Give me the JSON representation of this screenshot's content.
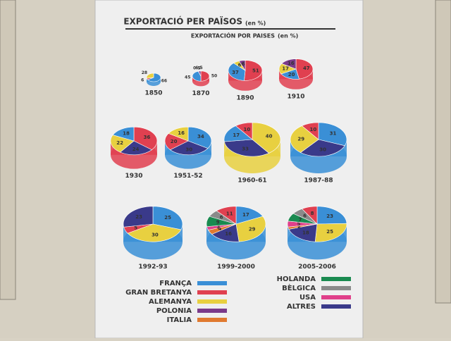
{
  "header": {
    "title": "EXPORTACIÓ PER PAÏSOS",
    "title_unit": "(en %)",
    "subtitle": "EXPORTACIÓN POR PAISES",
    "subtitle_unit": "(en %)"
  },
  "chart_data": [
    {
      "type": "pie",
      "title": "1850",
      "values": [
        66,
        6,
        28
      ],
      "colors": [
        "#3a8fd6",
        "#e04050",
        "#e8d040"
      ]
    },
    {
      "type": "pie",
      "title": "1870",
      "values": [
        50,
        45,
        0.5,
        4.5
      ],
      "colors": [
        "#e04050",
        "#3a8fd6",
        "#e8d040",
        "#7a3a8a"
      ]
    },
    {
      "type": "pie",
      "title": "1890",
      "values": [
        51,
        37,
        6,
        6
      ],
      "colors": [
        "#e04050",
        "#3a8fd6",
        "#e8d040",
        "#7a3a8a"
      ]
    },
    {
      "type": "pie",
      "title": "1910",
      "values": [
        47,
        20,
        17,
        16
      ],
      "colors": [
        "#e04050",
        "#3a8fd6",
        "#e8d040",
        "#7a3a8a"
      ]
    },
    {
      "type": "pie",
      "title": "1930",
      "values": [
        36,
        24,
        22,
        18
      ],
      "colors": [
        "#e04050",
        "#3a3a8a",
        "#e8d040",
        "#3a8fd6"
      ]
    },
    {
      "type": "pie",
      "title": "1951-52",
      "values": [
        34,
        30,
        20,
        16
      ],
      "colors": [
        "#3a8fd6",
        "#3a3a8a",
        "#e04050",
        "#e8d040"
      ]
    },
    {
      "type": "pie",
      "title": "1960-61",
      "values": [
        40,
        33,
        17,
        10
      ],
      "colors": [
        "#e8d040",
        "#3a3a8a",
        "#3a8fd6",
        "#e04050"
      ]
    },
    {
      "type": "pie",
      "title": "1987-88",
      "values": [
        31,
        30,
        29,
        10
      ],
      "colors": [
        "#3a8fd6",
        "#3a3a8a",
        "#e8d040",
        "#e04050"
      ]
    },
    {
      "type": "pie",
      "title": "1992-93",
      "values": [
        25,
        30,
        5,
        23
      ],
      "colors": [
        "#3a8fd6",
        "#e8d040",
        "#e04050",
        "#3a3a8a"
      ]
    },
    {
      "type": "pie",
      "title": "1999-2000",
      "values": [
        17,
        29,
        16,
        4,
        3,
        9,
        6,
        11
      ],
      "colors": [
        "#3a8fd6",
        "#e8d040",
        "#3a3a8a",
        "#e07a30",
        "#e0408a",
        "#1a8a50",
        "#8a8a8a",
        "#e04050"
      ]
    },
    {
      "type": "pie",
      "title": "2005-2006",
      "values": [
        23,
        25,
        18,
        2,
        5,
        7,
        6,
        8
      ],
      "colors": [
        "#3a8fd6",
        "#e8d040",
        "#3a3a8a",
        "#e07a30",
        "#e0408a",
        "#1a8a50",
        "#8a8a8a",
        "#e04050"
      ]
    }
  ],
  "legend": [
    {
      "name": "FRANÇA",
      "color": "#3a8fd6"
    },
    {
      "name": "GRAN BRETANYA",
      "color": "#e04050"
    },
    {
      "name": "ALEMANYA",
      "color": "#e8d040"
    },
    {
      "name": "POLONIA",
      "color": "#7a3a8a"
    },
    {
      "name": "ITALIA",
      "color": "#e07a30"
    },
    {
      "name": "HOLANDA",
      "color": "#1a8a50"
    },
    {
      "name": "BÈLGICA",
      "color": "#8a8a8a"
    },
    {
      "name": "USA",
      "color": "#e0408a"
    },
    {
      "name": "ALTRES",
      "color": "#3a3a8a"
    }
  ]
}
